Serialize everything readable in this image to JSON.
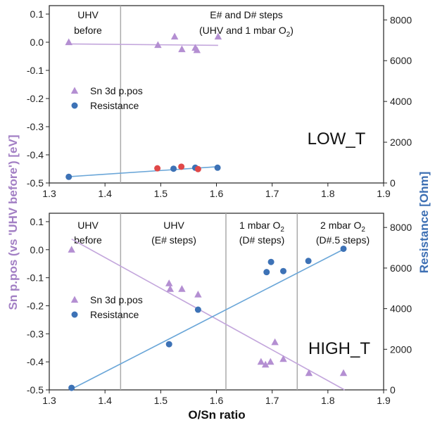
{
  "colors": {
    "sn": "#b48fd2",
    "snLine": "#c3a6dc",
    "res": "#3d72b6",
    "resLine": "#6aa6d8",
    "resAlt": "#e04848",
    "divider": "#aaaaaa"
  },
  "axes": {
    "xlabel": "O/Sn ratio",
    "ylabel_left": "Sn p.pos (vs 'UHV before') [eV]",
    "ylabel_right": "Resistance [Ohm]",
    "x_ticks": [
      "1.3",
      "1.4",
      "1.5",
      "1.6",
      "1.7",
      "1.8",
      "1.9"
    ],
    "y_ticks": [
      "0.1",
      "0.0",
      "-0.1",
      "-0.2",
      "-0.3",
      "-0.4",
      "-0.5"
    ],
    "y2_ticks": [
      "8000",
      "6000",
      "4000",
      "2000",
      "0"
    ]
  },
  "legend": {
    "sn": "Sn 3d p.pos",
    "res": "Resistance"
  },
  "chart_data": [
    {
      "type": "scatter",
      "panel_label": "LOW_T",
      "xlim": [
        1.3,
        1.9
      ],
      "ylim": [
        -0.5,
        0.13
      ],
      "y2lim": [
        0,
        8700
      ],
      "dividers": [
        1.428
      ],
      "annotations": [
        {
          "lines": [
            "UHV",
            "before"
          ]
        },
        {
          "lines": [
            "E# and D# steps",
            "(UHV and 1 mbar O2)"
          ]
        }
      ],
      "series": [
        {
          "name": "Sn 3d p.pos",
          "axis": "left",
          "marker": "triangle",
          "points": [
            [
              1.335,
              0.0
            ],
            [
              1.495,
              -0.01
            ],
            [
              1.525,
              0.02
            ],
            [
              1.538,
              -0.025
            ],
            [
              1.562,
              -0.02
            ],
            [
              1.565,
              -0.028
            ],
            [
              1.603,
              0.02
            ]
          ],
          "fit": [
            [
              1.335,
              -0.006
            ],
            [
              1.603,
              -0.011
            ]
          ]
        },
        {
          "name": "Resistance",
          "axis": "right",
          "marker": "circle",
          "points": [
            [
              1.335,
              300
            ],
            [
              1.523,
              700
            ],
            [
              1.562,
              750
            ],
            [
              1.602,
              750
            ]
          ],
          "highlight_points": [
            [
              1.494,
              720
            ],
            [
              1.537,
              800
            ],
            [
              1.567,
              680
            ]
          ],
          "fit": [
            [
              1.335,
              310
            ],
            [
              1.603,
              800
            ]
          ]
        }
      ]
    },
    {
      "type": "scatter",
      "panel_label": "HIGH_T",
      "xlim": [
        1.3,
        1.9
      ],
      "ylim": [
        -0.5,
        0.13
      ],
      "y2lim": [
        0,
        8700
      ],
      "dividers": [
        1.428,
        1.617,
        1.745
      ],
      "annotations": [
        {
          "lines": [
            "UHV",
            "before"
          ]
        },
        {
          "lines": [
            "UHV",
            "(E# steps)"
          ]
        },
        {
          "lines": [
            "1 mbar O2",
            "(D# steps)"
          ]
        },
        {
          "lines": [
            "2 mbar O2",
            "(D#.5 steps)"
          ]
        }
      ],
      "series": [
        {
          "name": "Sn 3d p.pos",
          "axis": "left",
          "marker": "triangle",
          "points": [
            [
              1.34,
              0.0
            ],
            [
              1.515,
              -0.12
            ],
            [
              1.517,
              -0.14
            ],
            [
              1.538,
              -0.14
            ],
            [
              1.567,
              -0.16
            ],
            [
              1.68,
              -0.4
            ],
            [
              1.688,
              -0.41
            ],
            [
              1.697,
              -0.4
            ],
            [
              1.705,
              -0.33
            ],
            [
              1.72,
              -0.39
            ],
            [
              1.766,
              -0.44
            ],
            [
              1.828,
              -0.44
            ]
          ],
          "fit": [
            [
              1.34,
              0.038
            ],
            [
              1.83,
              -0.5
            ]
          ]
        },
        {
          "name": "Resistance",
          "axis": "right",
          "marker": "circle",
          "points": [
            [
              1.34,
              100
            ],
            [
              1.515,
              2250
            ],
            [
              1.567,
              3950
            ],
            [
              1.69,
              5800
            ],
            [
              1.698,
              6300
            ],
            [
              1.72,
              5850
            ],
            [
              1.765,
              6350
            ],
            [
              1.828,
              6950
            ]
          ],
          "fit": [
            [
              1.34,
              40
            ],
            [
              1.83,
              6950
            ]
          ]
        }
      ]
    }
  ]
}
